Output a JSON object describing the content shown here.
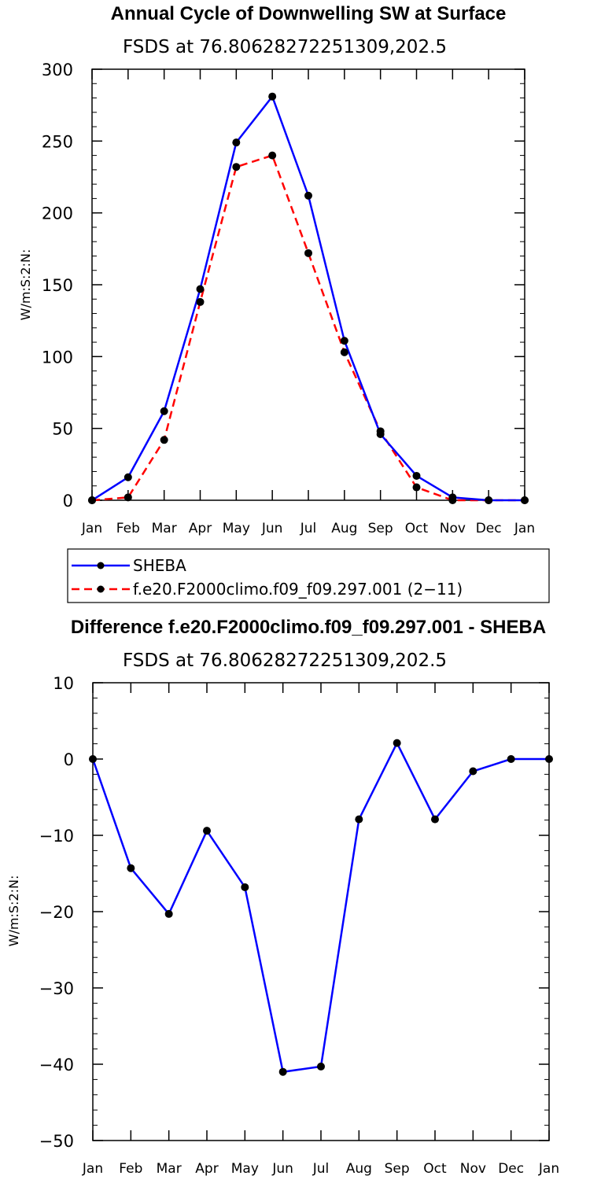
{
  "chart_data": [
    {
      "type": "line",
      "title": "Annual Cycle of Downwelling SW at Surface",
      "subtitle": "FSDS at 76.80628272251309,202.5",
      "ylabel": "W/m:S:2:N:",
      "xlabel": "",
      "ylim": [
        0,
        300
      ],
      "yticks": [
        0,
        50,
        100,
        150,
        200,
        250,
        300
      ],
      "categories": [
        "Jan",
        "Feb",
        "Mar",
        "Apr",
        "May",
        "Jun",
        "Jul",
        "Aug",
        "Sep",
        "Oct",
        "Nov",
        "Dec",
        "Jan"
      ],
      "series": [
        {
          "name": "SHEBA",
          "color": "#0000ff",
          "dash": "solid",
          "values": [
            0,
            16,
            62,
            147,
            249,
            281,
            212,
            111,
            46,
            17,
            2,
            0,
            0
          ]
        },
        {
          "name": "f.e20.F2000climo.f09_f09.297.001 (2−11)",
          "color": "#ff0000",
          "dash": "dashed",
          "values": [
            0,
            2,
            42,
            138,
            232,
            240,
            172,
            103,
            48,
            9,
            0,
            0,
            0
          ]
        }
      ],
      "legend": "below"
    },
    {
      "type": "line",
      "title": "Difference f.e20.F2000climo.f09_f09.297.001 - SHEBA",
      "subtitle": "FSDS at 76.80628272251309,202.5",
      "ylabel": "W/m:S:2:N:",
      "xlabel": "",
      "ylim": [
        -50,
        10
      ],
      "yticks": [
        -50,
        -40,
        -30,
        -20,
        -10,
        0,
        10
      ],
      "categories": [
        "Jan",
        "Feb",
        "Mar",
        "Apr",
        "May",
        "Jun",
        "Jul",
        "Aug",
        "Sep",
        "Oct",
        "Nov",
        "Dec",
        "Jan"
      ],
      "series": [
        {
          "color": "#0000ff",
          "dash": "solid",
          "values": [
            0,
            -14.3,
            -20.3,
            -9.4,
            -16.8,
            -41.0,
            -40.3,
            -7.9,
            2.1,
            -7.9,
            -1.6,
            0,
            0
          ]
        }
      ]
    }
  ]
}
